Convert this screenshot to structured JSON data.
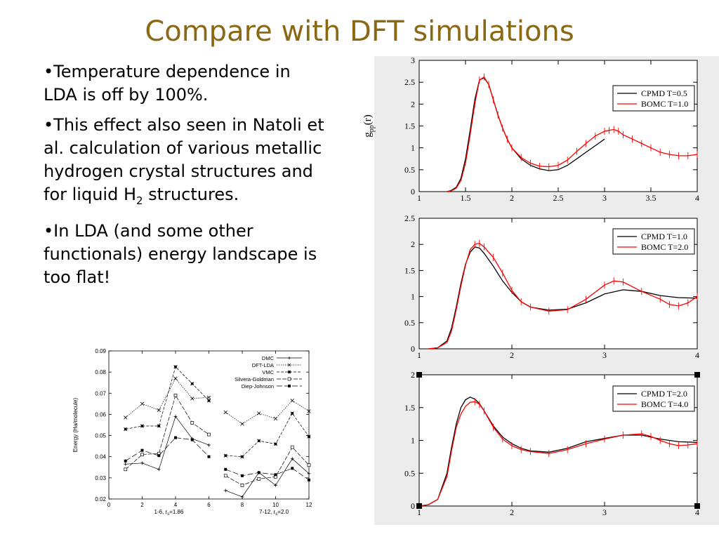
{
  "slide": {
    "title": "Compare with DFT simulations",
    "bullets": [
      {
        "pre": "•Temperature dependence in LDA is off by 100%.",
        "sub": "",
        "post": ""
      },
      {
        "pre": "•This effect also seen in Natoli et al. calculation of various metallic hydrogen crystal structures and for liquid H",
        "sub": "2",
        "post": " structures."
      },
      {
        "pre": "•In LDA (and some other functionals) energy landscape is too flat!",
        "sub": "",
        "post": ""
      }
    ]
  },
  "colors": {
    "title": "#8b6914",
    "black_series": "#000000",
    "red_series": "#ff0000"
  },
  "chart_data": [
    {
      "type": "line",
      "ylabel": "g_pp(r)",
      "xlim": [
        1,
        4
      ],
      "ylim": [
        0,
        3
      ],
      "xticks": [
        "1",
        "1.5",
        "2",
        "2.5",
        "3",
        "3.5",
        "4"
      ],
      "yticks": [
        "0",
        "0.5",
        "1",
        "1.5",
        "2",
        "2.5",
        "3"
      ],
      "legend": "top-right",
      "series": [
        {
          "name": "CPMD T=0.5",
          "color": "#000000",
          "x": [
            1.3,
            1.35,
            1.4,
            1.45,
            1.5,
            1.55,
            1.6,
            1.65,
            1.7,
            1.75,
            1.8,
            1.85,
            1.9,
            1.95,
            2.0,
            2.1,
            2.2,
            2.3,
            2.4,
            2.5,
            2.6,
            2.7,
            2.8,
            2.9,
            3.0
          ],
          "y": [
            0,
            0.03,
            0.1,
            0.3,
            0.75,
            1.4,
            2.1,
            2.55,
            2.6,
            2.45,
            2.1,
            1.75,
            1.45,
            1.2,
            1.0,
            0.75,
            0.6,
            0.52,
            0.48,
            0.5,
            0.6,
            0.75,
            0.9,
            1.05,
            1.2
          ]
        },
        {
          "name": "BOMC T=1.0",
          "color": "#ff0000",
          "error_bars": true,
          "x": [
            1.3,
            1.35,
            1.4,
            1.45,
            1.5,
            1.55,
            1.6,
            1.65,
            1.7,
            1.75,
            1.8,
            1.85,
            1.9,
            1.95,
            2.0,
            2.1,
            2.2,
            2.3,
            2.4,
            2.5,
            2.6,
            2.7,
            2.8,
            2.9,
            3.0,
            3.05,
            3.1,
            3.15,
            3.2,
            3.3,
            3.4,
            3.5,
            3.6,
            3.7,
            3.8,
            3.9,
            4.0
          ],
          "y": [
            0,
            0.02,
            0.08,
            0.25,
            0.65,
            1.3,
            2.0,
            2.55,
            2.62,
            2.45,
            2.1,
            1.75,
            1.45,
            1.2,
            1.0,
            0.78,
            0.65,
            0.58,
            0.57,
            0.6,
            0.72,
            0.92,
            1.1,
            1.27,
            1.38,
            1.4,
            1.42,
            1.38,
            1.3,
            1.2,
            1.1,
            1.0,
            0.9,
            0.85,
            0.82,
            0.82,
            0.85
          ]
        }
      ]
    },
    {
      "type": "line",
      "xlim": [
        1,
        4
      ],
      "ylim": [
        0,
        2.5
      ],
      "xticks": [
        "1",
        "2",
        "3",
        "4"
      ],
      "yticks": [
        "0",
        "0.5",
        "1",
        "1.5",
        "2",
        "2.5"
      ],
      "legend": "top-right",
      "series": [
        {
          "name": "CPMD T=1.0",
          "color": "#000000",
          "x": [
            1.1,
            1.2,
            1.3,
            1.35,
            1.4,
            1.45,
            1.5,
            1.55,
            1.6,
            1.65,
            1.7,
            1.8,
            1.9,
            2.0,
            2.1,
            2.2,
            2.4,
            2.6,
            2.8,
            3.0,
            3.2,
            3.4,
            3.6,
            3.8,
            4.0
          ],
          "y": [
            0,
            0.02,
            0.15,
            0.4,
            0.8,
            1.25,
            1.62,
            1.85,
            1.95,
            1.93,
            1.83,
            1.58,
            1.3,
            1.08,
            0.9,
            0.8,
            0.74,
            0.76,
            0.88,
            1.05,
            1.13,
            1.1,
            1.02,
            0.98,
            0.97
          ]
        },
        {
          "name": "BOMC T=2.0",
          "color": "#ff0000",
          "error_bars": true,
          "x": [
            1.1,
            1.2,
            1.3,
            1.35,
            1.4,
            1.45,
            1.5,
            1.55,
            1.6,
            1.65,
            1.7,
            1.8,
            1.9,
            2.0,
            2.1,
            2.2,
            2.4,
            2.6,
            2.8,
            3.0,
            3.1,
            3.2,
            3.4,
            3.6,
            3.7,
            3.8,
            3.9,
            4.0
          ],
          "y": [
            0,
            0.02,
            0.12,
            0.35,
            0.75,
            1.2,
            1.6,
            1.9,
            2.0,
            2.02,
            1.95,
            1.75,
            1.45,
            1.12,
            0.9,
            0.8,
            0.72,
            0.75,
            0.95,
            1.22,
            1.3,
            1.28,
            1.1,
            0.95,
            0.85,
            0.82,
            0.88,
            1.0
          ]
        }
      ]
    },
    {
      "type": "line",
      "xlim": [
        1,
        4
      ],
      "ylim": [
        0,
        2
      ],
      "xticks": [
        "1",
        "2",
        "3",
        "4"
      ],
      "yticks": [
        "0",
        "0.5",
        "1",
        "1.5",
        "2"
      ],
      "legend": "top-right",
      "series": [
        {
          "name": "CPMD T=2.0",
          "color": "#000000",
          "x": [
            1.0,
            1.1,
            1.2,
            1.3,
            1.35,
            1.4,
            1.45,
            1.5,
            1.55,
            1.6,
            1.65,
            1.7,
            1.8,
            1.9,
            2.0,
            2.1,
            2.2,
            2.4,
            2.6,
            2.8,
            3.0,
            3.2,
            3.4,
            3.6,
            3.8,
            4.0
          ],
          "y": [
            0,
            0.02,
            0.1,
            0.5,
            0.9,
            1.25,
            1.5,
            1.62,
            1.66,
            1.63,
            1.56,
            1.45,
            1.22,
            1.05,
            0.95,
            0.88,
            0.84,
            0.82,
            0.88,
            0.98,
            1.03,
            1.08,
            1.08,
            1.02,
            0.98,
            0.97
          ]
        },
        {
          "name": "BOMC T=4.0",
          "color": "#ff0000",
          "error_bars": true,
          "x": [
            1.0,
            1.1,
            1.2,
            1.3,
            1.35,
            1.4,
            1.45,
            1.5,
            1.55,
            1.6,
            1.65,
            1.7,
            1.8,
            1.9,
            2.0,
            2.1,
            2.2,
            2.4,
            2.6,
            2.8,
            3.0,
            3.2,
            3.4,
            3.5,
            3.6,
            3.7,
            3.8,
            3.9,
            4.0
          ],
          "y": [
            0,
            0.02,
            0.1,
            0.45,
            0.85,
            1.2,
            1.4,
            1.52,
            1.58,
            1.59,
            1.55,
            1.45,
            1.2,
            1.02,
            0.92,
            0.86,
            0.83,
            0.8,
            0.86,
            0.95,
            1.02,
            1.08,
            1.1,
            1.06,
            1.0,
            0.95,
            0.92,
            0.93,
            0.95
          ]
        }
      ]
    },
    {
      "type": "line",
      "ylabel": "Energy (Ha/molecule)",
      "xlim": [
        0,
        12
      ],
      "ylim": [
        0.02,
        0.09
      ],
      "xticks": [
        "0",
        "2",
        "4",
        "6",
        "8",
        "10",
        "12"
      ],
      "yticks": [
        "0.02",
        "0.03",
        "0.04",
        "0.05",
        "0.06",
        "0.07",
        "0.08",
        "0.09"
      ],
      "xgroup_labels": [
        {
          "text": "1-6, r",
          "sub": "s",
          "post": "=1.86"
        },
        {
          "text": "7-12, r",
          "sub": "s",
          "post": "=2.0"
        }
      ],
      "legend": "top-right",
      "series": [
        {
          "name": "DMC",
          "marker": "+",
          "dash": "",
          "segments": [
            {
              "x": [
                1,
                2,
                3,
                4,
                5,
                6
              ],
              "y": [
                0.0365,
                0.037,
                0.034,
                0.059,
                0.0485,
                0.0455
              ]
            },
            {
              "x": [
                7,
                8,
                9,
                10,
                11,
                12
              ],
              "y": [
                0.024,
                0.021,
                0.0325,
                0.0265,
                0.039,
                0.032
              ]
            }
          ]
        },
        {
          "name": "DFT-LDA",
          "marker": "x",
          "dash": "1.5,1.5",
          "segments": [
            {
              "x": [
                1,
                2,
                3,
                4,
                5,
                6
              ],
              "y": [
                0.0585,
                0.065,
                0.062,
                0.077,
                0.0675,
                0.068
              ]
            },
            {
              "x": [
                7,
                8,
                9,
                10,
                11,
                12
              ],
              "y": [
                0.061,
                0.0555,
                0.0605,
                0.058,
                0.0665,
                0.0615
              ]
            }
          ]
        },
        {
          "name": "VMC",
          "marker": "*",
          "dash": "4,2",
          "segments": [
            {
              "x": [
                1,
                2,
                3,
                4,
                5,
                6
              ],
              "y": [
                0.053,
                0.0545,
                0.0545,
                0.0825,
                0.0745,
                0.0665
              ]
            },
            {
              "x": [
                7,
                8,
                9,
                10,
                11,
                12
              ],
              "y": [
                0.0405,
                0.04,
                0.0475,
                0.046,
                0.0605,
                0.0495
              ]
            }
          ]
        },
        {
          "name": "Silvera-Goldman",
          "marker": "square-open",
          "dash": "6,2",
          "segments": [
            {
              "x": [
                1,
                2,
                3,
                4,
                5,
                6
              ],
              "y": [
                0.034,
                0.041,
                0.0415,
                0.069,
                0.056,
                0.0505
              ]
            },
            {
              "x": [
                7,
                8,
                9,
                10,
                11,
                12
              ],
              "y": [
                0.031,
                0.0265,
                0.0295,
                0.0305,
                0.0445,
                0.036
              ]
            }
          ]
        },
        {
          "name": "Diep-Johnson",
          "marker": "square-filled",
          "dash": "8,3",
          "segments": [
            {
              "x": [
                1,
                2,
                3,
                4,
                5,
                6
              ],
              "y": [
                0.038,
                0.043,
                0.0405,
                0.049,
                0.048,
                0.04
              ]
            },
            {
              "x": [
                7,
                8,
                9,
                10,
                11,
                12
              ],
              "y": [
                0.034,
                0.031,
                0.0325,
                0.0315,
                0.0345,
                0.029
              ]
            }
          ]
        }
      ]
    }
  ]
}
